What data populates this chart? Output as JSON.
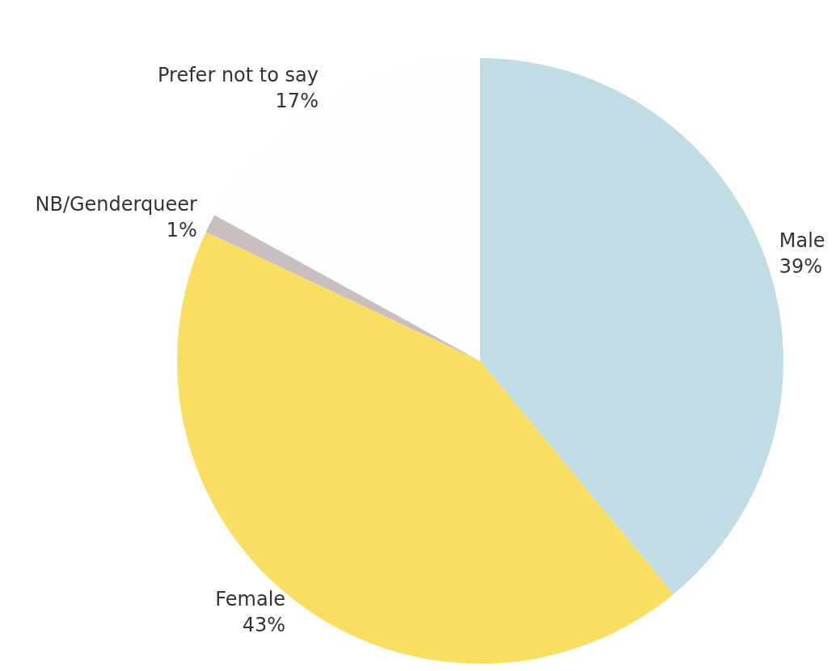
{
  "chart_data": {
    "type": "pie",
    "categories": [
      "Male",
      "Female",
      "NB/Genderqueer",
      "Prefer not to say"
    ],
    "values": [
      39,
      43,
      1,
      17
    ],
    "value_labels": [
      "39%",
      "43%",
      "1%",
      "17%"
    ],
    "colors": [
      "#c0dce4",
      "#f8df62",
      "#c9bfbf",
      "#fdfdfd"
    ],
    "legend": false
  }
}
